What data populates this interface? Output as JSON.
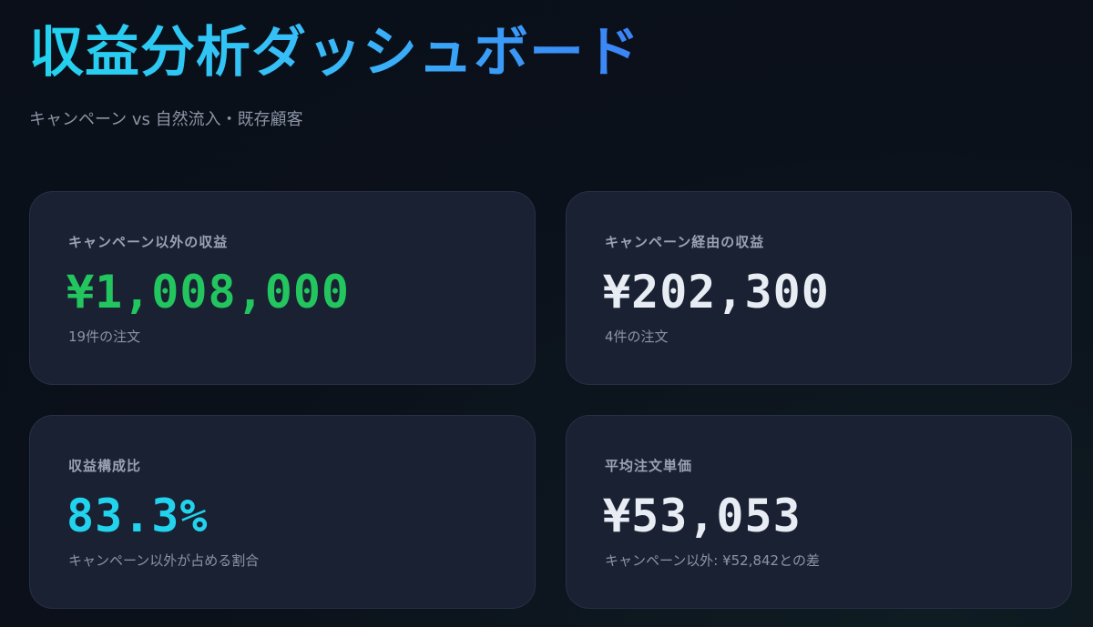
{
  "header": {
    "title": "収益分析ダッシュボード",
    "subtitle": "キャンペーン vs 自然流入・既存顧客"
  },
  "cards": [
    {
      "label": "キャンペーン以外の収益",
      "value": "¥1,008,000",
      "sub": "19件の注文",
      "color": "#22c55e"
    },
    {
      "label": "キャンペーン経由の収益",
      "value": "¥202,300",
      "sub": "4件の注文",
      "color": "#e8ecf3"
    },
    {
      "label": "収益構成比",
      "value": "83.3%",
      "sub": "キャンペーン以外が占める割合",
      "color": "#22d3ee"
    },
    {
      "label": "平均注文単価",
      "value": "¥53,053",
      "sub": "キャンペーン以外: ¥52,842との差",
      "color": "#e8ecf3"
    }
  ]
}
